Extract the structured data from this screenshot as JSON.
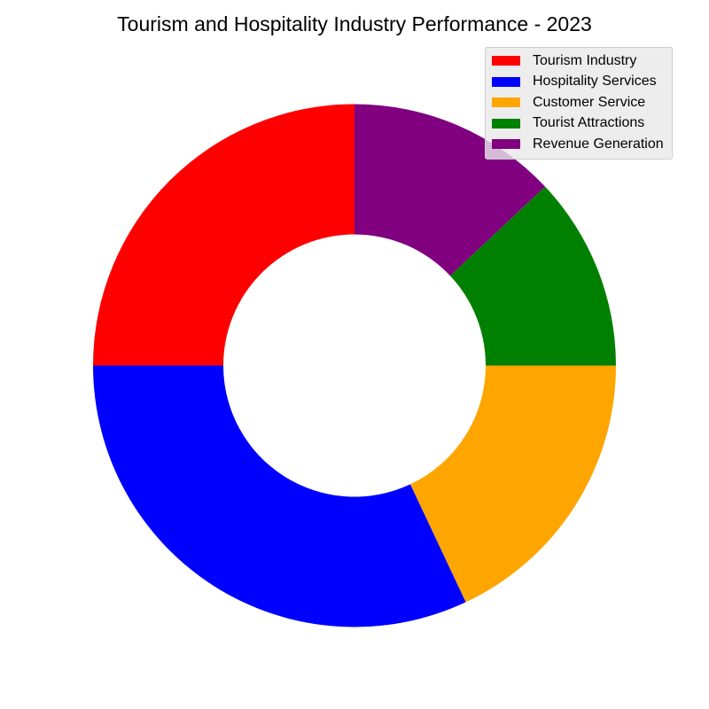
{
  "chart_data": {
    "type": "pie",
    "subtype": "donut",
    "title": "Tourism and Hospitality Industry Performance - 2023",
    "categories": [
      "Tourism Industry",
      "Hospitality Services",
      "Customer Service",
      "Tourist Attractions",
      "Revenue Generation"
    ],
    "values": [
      25,
      32,
      18,
      12,
      13
    ],
    "colors": [
      "#ff0000",
      "#0000ff",
      "#ffa500",
      "#008000",
      "#800080"
    ],
    "start_angle_deg": 90,
    "direction": "counterclockwise",
    "legend_position": "top-right",
    "grid": false
  }
}
